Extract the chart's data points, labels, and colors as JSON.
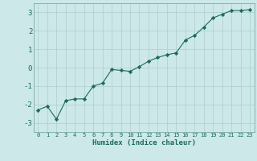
{
  "x": [
    0,
    1,
    2,
    3,
    4,
    5,
    6,
    7,
    8,
    9,
    10,
    11,
    12,
    13,
    14,
    15,
    16,
    17,
    18,
    19,
    20,
    21,
    22,
    23
  ],
  "y": [
    -2.3,
    -2.1,
    -2.8,
    -1.8,
    -1.7,
    -1.7,
    -1.0,
    -0.85,
    -0.1,
    -0.15,
    -0.2,
    0.05,
    0.35,
    0.55,
    0.7,
    0.8,
    1.5,
    1.75,
    2.2,
    2.7,
    2.9,
    3.1,
    3.1,
    3.15
  ],
  "xlabel": "Humidex (Indice chaleur)",
  "ylim": [
    -3.5,
    3.5
  ],
  "xlim": [
    -0.5,
    23.5
  ],
  "yticks": [
    -3,
    -2,
    -1,
    0,
    1,
    2,
    3
  ],
  "xticks": [
    0,
    1,
    2,
    3,
    4,
    5,
    6,
    7,
    8,
    9,
    10,
    11,
    12,
    13,
    14,
    15,
    16,
    17,
    18,
    19,
    20,
    21,
    22,
    23
  ],
  "line_color": "#1a6b5a",
  "marker": "D",
  "marker_size": 2.2,
  "bg_color": "#cce8e8",
  "grid_color": "#b0cccc",
  "spine_color": "#7aabab"
}
